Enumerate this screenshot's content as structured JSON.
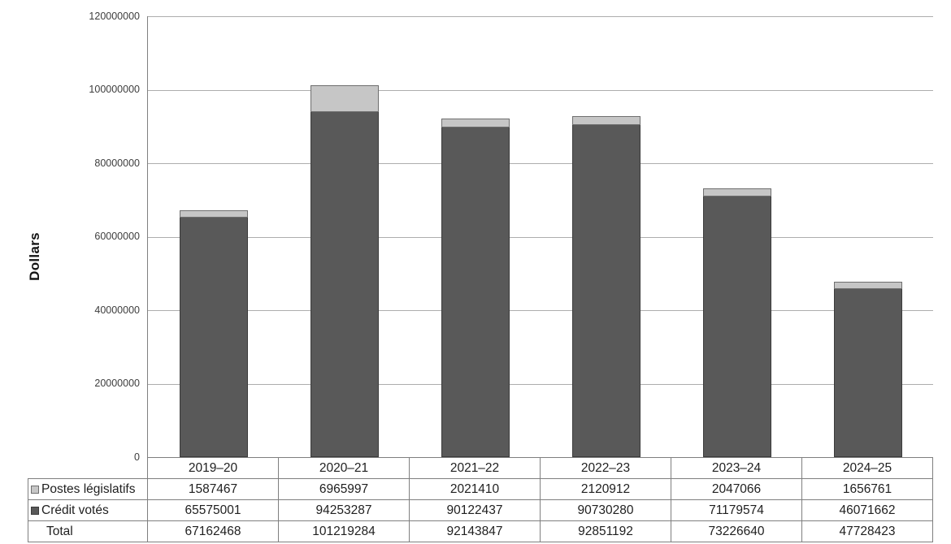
{
  "chart_data": {
    "type": "bar",
    "stacked": true,
    "ylabel": "Dollars",
    "categories": [
      "2019–20",
      "2020–21",
      "2021–22",
      "2022–23",
      "2023–24",
      "2024–25"
    ],
    "series": [
      {
        "name": "Postes législatifs",
        "color": "#c6c6c6",
        "border_color": "#6f6f6f",
        "values": [
          1587467,
          6965997,
          2021410,
          2120912,
          2047066,
          1656761
        ]
      },
      {
        "name": "Crédit votés",
        "color": "#595959",
        "border_color": "#3b3b3b",
        "values": [
          65575001,
          94253287,
          90122437,
          90730280,
          71179574,
          46071662
        ]
      }
    ],
    "totals": {
      "label": "Total",
      "values": [
        67162468,
        101219284,
        92143847,
        92851192,
        73226640,
        47728423
      ]
    },
    "ylim": [
      0,
      120000000
    ],
    "yticks": [
      "0",
      "20000000",
      "40000000",
      "60000000",
      "80000000",
      "100000000",
      "120000000"
    ],
    "grid": true,
    "legend_position": "table-rows",
    "axis_color": "#808080",
    "gridline_color": "#adadad",
    "table_border_color": "#7f7f7f"
  }
}
